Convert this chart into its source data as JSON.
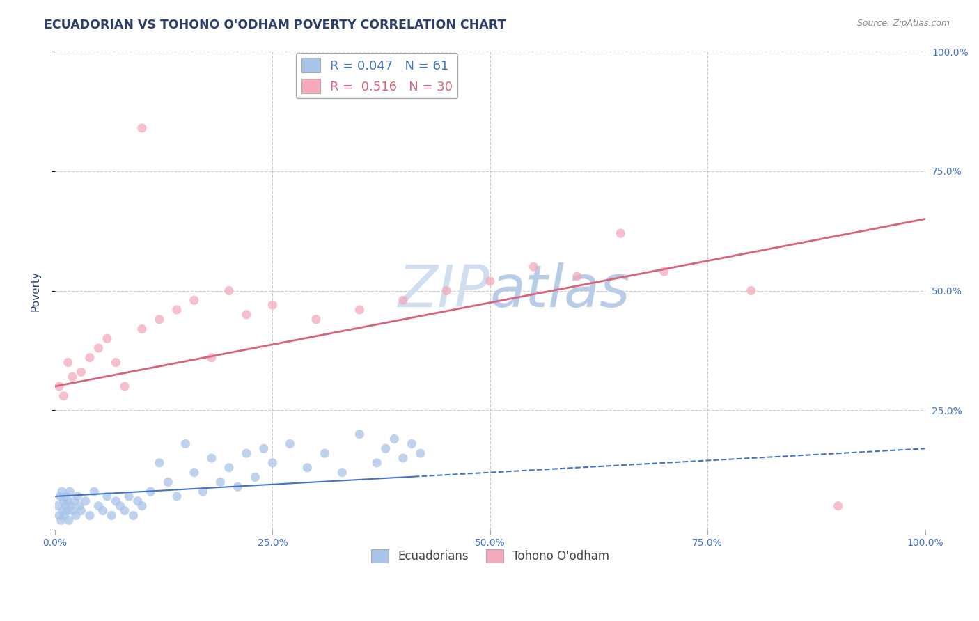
{
  "title": "ECUADORIAN VS TOHONO O'ODHAM POVERTY CORRELATION CHART",
  "source": "Source: ZipAtlas.com",
  "ylabel": "Poverty",
  "blue_label": "Ecuadorians",
  "pink_label": "Tohono O'odham",
  "blue_R": 0.047,
  "blue_N": 61,
  "pink_R": 0.516,
  "pink_N": 30,
  "blue_color": "#a8c4e8",
  "pink_color": "#f4aabb",
  "blue_line_color": "#4472c4",
  "pink_line_color": "#d9637a",
  "background_color": "#ffffff",
  "grid_color": "#cccccc",
  "title_color": "#2c3e6b",
  "tick_color": "#4472c4",
  "source_color": "#888888",
  "watermark_color": "#d0dff0",
  "xlim": [
    0,
    100
  ],
  "ylim": [
    0,
    100
  ],
  "xticks": [
    0,
    25,
    50,
    75,
    100
  ],
  "yticks": [
    0,
    25,
    50,
    75,
    100
  ],
  "xticklabels": [
    "0.0%",
    "25.0%",
    "50.0%",
    "75.0%",
    "100.0%"
  ],
  "yticklabels_right": [
    "",
    "25.0%",
    "50.0%",
    "75.0%",
    "100.0%"
  ],
  "blue_x": [
    0.3,
    0.5,
    0.6,
    0.7,
    0.8,
    0.9,
    1.0,
    1.1,
    1.2,
    1.3,
    1.4,
    1.5,
    1.6,
    1.7,
    1.8,
    2.0,
    2.2,
    2.4,
    2.6,
    2.8,
    3.0,
    3.5,
    4.0,
    4.5,
    5.0,
    5.5,
    6.0,
    6.5,
    7.0,
    7.5,
    8.0,
    8.5,
    9.0,
    9.5,
    10.0,
    11.0,
    12.0,
    13.0,
    14.0,
    15.0,
    16.0,
    17.0,
    18.0,
    19.0,
    20.0,
    21.0,
    22.0,
    23.0,
    24.0,
    25.0,
    27.0,
    29.0,
    31.0,
    33.0,
    35.0,
    37.0,
    38.0,
    39.0,
    40.0,
    41.0,
    42.0
  ],
  "blue_y": [
    5.0,
    3.0,
    7.0,
    2.0,
    8.0,
    4.0,
    6.0,
    3.0,
    5.0,
    7.0,
    4.0,
    6.0,
    2.0,
    8.0,
    5.0,
    4.0,
    6.0,
    3.0,
    7.0,
    5.0,
    4.0,
    6.0,
    3.0,
    8.0,
    5.0,
    4.0,
    7.0,
    3.0,
    6.0,
    5.0,
    4.0,
    7.0,
    3.0,
    6.0,
    5.0,
    8.0,
    14.0,
    10.0,
    7.0,
    18.0,
    12.0,
    8.0,
    15.0,
    10.0,
    13.0,
    9.0,
    16.0,
    11.0,
    17.0,
    14.0,
    18.0,
    13.0,
    16.0,
    12.0,
    20.0,
    14.0,
    17.0,
    19.0,
    15.0,
    18.0,
    16.0
  ],
  "pink_x": [
    0.5,
    1.0,
    1.5,
    2.0,
    3.0,
    4.0,
    5.0,
    6.0,
    7.0,
    8.0,
    10.0,
    12.0,
    14.0,
    16.0,
    18.0,
    20.0,
    22.0,
    25.0,
    55.0,
    60.0,
    65.0,
    70.0,
    80.0,
    90.0,
    10.0,
    35.0,
    40.0,
    45.0,
    50.0,
    30.0
  ],
  "pink_y": [
    30.0,
    28.0,
    35.0,
    32.0,
    33.0,
    36.0,
    38.0,
    40.0,
    35.0,
    30.0,
    42.0,
    44.0,
    46.0,
    48.0,
    36.0,
    50.0,
    45.0,
    47.0,
    55.0,
    53.0,
    62.0,
    54.0,
    50.0,
    5.0,
    84.0,
    46.0,
    48.0,
    50.0,
    52.0,
    44.0
  ],
  "blue_solid_end": 42.0,
  "pink_y_intercept": 30.0,
  "pink_slope": 0.35,
  "blue_y_intercept": 7.0,
  "blue_slope": 0.1
}
